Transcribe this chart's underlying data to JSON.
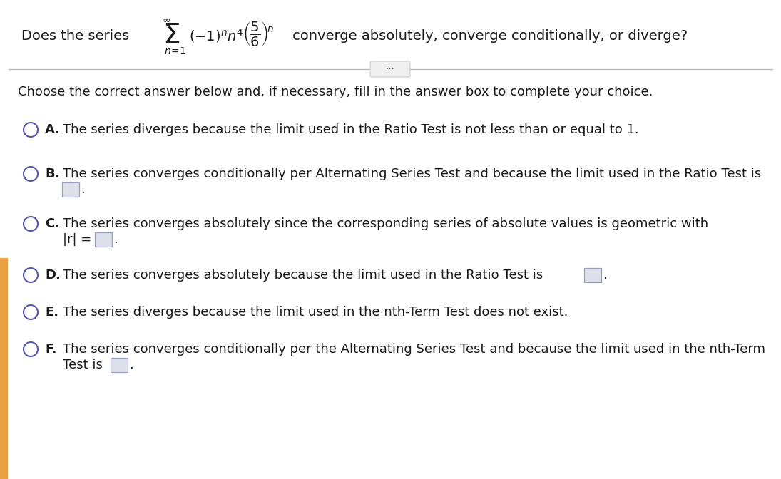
{
  "bg_color": "#ffffff",
  "text_color": "#1a1a1a",
  "instruction": "Choose the correct answer below and, if necessary, fill in the answer box to complete your choice.",
  "options_A_text": "The series diverges because the limit used in the Ratio Test is not less than or equal to 1.",
  "options_B_text": "The series converges conditionally per Alternating Series Test and because the limit used in the Ratio Test is",
  "options_C_text": "The series converges absolutely since the corresponding series of absolute values is geometric with",
  "options_C_text2": "|r| =",
  "options_D_text": "The series converges absolutely because the limit used in the Ratio Test is",
  "options_E_text": "The series diverges because the limit used in the nth-Term Test does not exist.",
  "options_F_text": "The series converges conditionally per the Alternating Series Test and because the limit used in the nth-Term",
  "options_F_text2": "Test is",
  "circle_color": "#5555aa",
  "box_fill": "#dde0ea",
  "box_edge": "#9aa0bc",
  "separator_color": "#bbbbbb",
  "left_accent_color": "#e8a040",
  "dots_bg": "#f0f0f0",
  "dots_edge": "#cccccc"
}
